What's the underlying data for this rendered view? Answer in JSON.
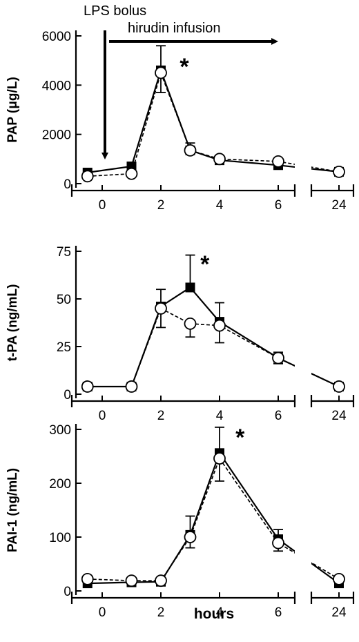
{
  "figure": {
    "x_axis_label": "hours",
    "annotations": {
      "bolus": "LPS bolus",
      "infusion": "hirudin infusion"
    }
  },
  "chart_data": [
    {
      "type": "line",
      "ylabel": "PAP (μg/L)",
      "ylim": [
        0,
        6000
      ],
      "yticks": [
        0,
        2000,
        4000,
        6000
      ],
      "xticks": [
        "0",
        "2",
        "4",
        "6",
        "24"
      ],
      "x_segments": [
        [
          -0.5,
          6.5
        ],
        [
          23.5,
          24.3
        ]
      ],
      "significance_marker": {
        "text": "*",
        "x": 2.8
      },
      "series": [
        {
          "marker": "filled-square",
          "line": "solid",
          "x": [
            -0.5,
            1,
            2,
            3,
            4,
            6,
            24
          ],
          "y": [
            450,
            700,
            4600,
            1350,
            950,
            750,
            480
          ],
          "err_up": [
            0,
            0,
            1000,
            300,
            0,
            0,
            0
          ]
        },
        {
          "marker": "open-circle",
          "line": "dashed",
          "x": [
            -0.5,
            1,
            2,
            3,
            4,
            6,
            24
          ],
          "y": [
            300,
            400,
            4500,
            1350,
            1000,
            900,
            480
          ],
          "err_down": [
            0,
            0,
            800,
            0,
            0,
            0,
            0
          ]
        }
      ]
    },
    {
      "type": "line",
      "ylabel": "t-PA (ng/mL)",
      "ylim": [
        0,
        75
      ],
      "yticks": [
        0,
        25,
        50,
        75
      ],
      "xticks": [
        "0",
        "2",
        "4",
        "6",
        "24"
      ],
      "x_segments": [
        [
          -0.5,
          6.5
        ],
        [
          23.5,
          24.3
        ]
      ],
      "significance_marker": {
        "text": "*",
        "x": 3.5
      },
      "series": [
        {
          "marker": "filled-square",
          "line": "solid",
          "x": [
            -0.5,
            1,
            2,
            3,
            4,
            6,
            24
          ],
          "y": [
            4,
            4,
            46,
            56,
            38,
            19,
            4
          ],
          "err_up": [
            0,
            0,
            9,
            17,
            10,
            3,
            0
          ]
        },
        {
          "marker": "open-circle",
          "line": "dashed",
          "x": [
            -0.5,
            1,
            2,
            3,
            4,
            6,
            24
          ],
          "y": [
            4,
            4,
            45,
            37,
            36,
            19,
            4
          ],
          "err_down": [
            0,
            0,
            10,
            7,
            9,
            3,
            0
          ]
        }
      ]
    },
    {
      "type": "line",
      "ylabel": "PAI-1 (ng/mL)",
      "ylim": [
        0,
        300
      ],
      "yticks": [
        0,
        100,
        200,
        300
      ],
      "xticks": [
        "0",
        "2",
        "4",
        "6",
        "24"
      ],
      "x_segments": [
        [
          -0.5,
          6.5
        ],
        [
          23.5,
          24.3
        ]
      ],
      "significance_marker": {
        "text": "*",
        "x": 4.7
      },
      "series": [
        {
          "marker": "filled-square",
          "line": "solid",
          "x": [
            -0.5,
            1,
            2,
            3,
            4,
            6,
            24
          ],
          "y": [
            14,
            16,
            17,
            104,
            256,
            96,
            14
          ],
          "err_up": [
            0,
            0,
            0,
            35,
            48,
            18,
            0
          ]
        },
        {
          "marker": "open-circle",
          "line": "dashed",
          "x": [
            -0.5,
            1,
            2,
            3,
            4,
            6,
            24
          ],
          "y": [
            22,
            19,
            19,
            100,
            246,
            89,
            22
          ],
          "err_down": [
            0,
            0,
            0,
            20,
            42,
            15,
            0
          ]
        }
      ]
    }
  ]
}
